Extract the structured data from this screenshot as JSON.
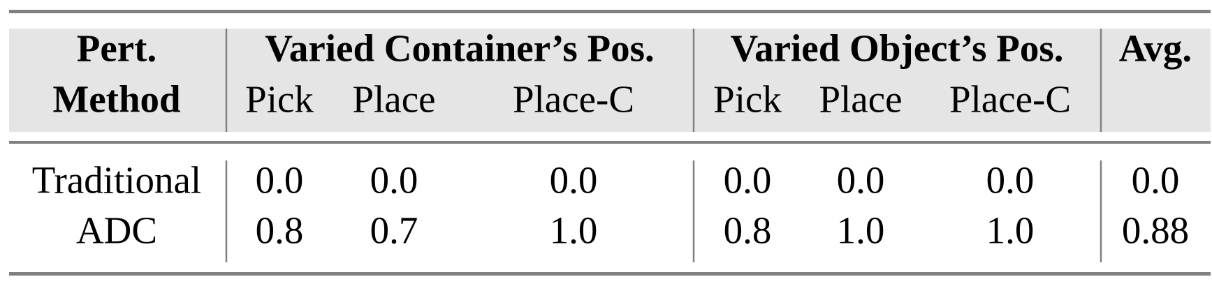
{
  "table": {
    "header": {
      "method": [
        "Pert.",
        "Method"
      ],
      "groups": [
        "Varied Container’s Pos.",
        "Varied Object’s Pos.",
        "Avg."
      ],
      "subheaders": [
        "Pick",
        "Place",
        "Place-C",
        "Pick",
        "Place",
        "Place-C"
      ]
    },
    "rows": [
      [
        "Traditional",
        "0.0",
        "0.0",
        "0.0",
        "0.0",
        "0.0",
        "0.0",
        "0.0"
      ],
      [
        "ADC",
        "0.8",
        "0.7",
        "1.0",
        "0.8",
        "1.0",
        "1.0",
        "0.88"
      ]
    ]
  }
}
